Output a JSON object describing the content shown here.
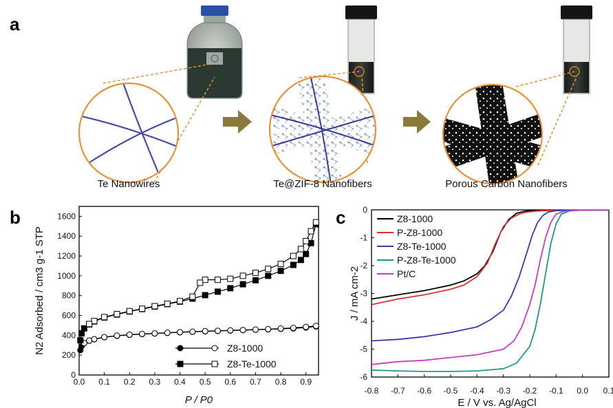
{
  "panels": {
    "a": {
      "letter": "a",
      "labels": [
        "Te Nanowires",
        "Te@ZIF-8 Nanofibers",
        "Porous Carbon Nanofibers"
      ]
    },
    "b": {
      "letter": "b"
    },
    "c": {
      "letter": "c"
    }
  },
  "colors": {
    "arrow": "#8a7a3a",
    "circle": "#e8913a",
    "wire": "#4a4aa8"
  },
  "chart_data": [
    {
      "panel": "b",
      "type": "line",
      "xlabel": "P / P0",
      "ylabel": "N2 Adsorbed / cm3 g-1 STP",
      "xlim": [
        0,
        0.95
      ],
      "ylim": [
        0,
        1700
      ],
      "xticks": [
        "0.0",
        "0.1",
        "0.2",
        "0.3",
        "0.4",
        "0.5",
        "0.6",
        "0.7",
        "0.8",
        "0.9"
      ],
      "yticks": [
        "0",
        "200",
        "400",
        "600",
        "800",
        "1000",
        "1200",
        "1400",
        "1600"
      ],
      "legend_position": "bottom-right",
      "series": [
        {
          "name": "Z8-1000",
          "branch": "adsorption",
          "marker": "filled-circle",
          "x": [
            0.005,
            0.01,
            0.02,
            0.04,
            0.06,
            0.1,
            0.15,
            0.2,
            0.25,
            0.3,
            0.35,
            0.4,
            0.45,
            0.5,
            0.55,
            0.6,
            0.65,
            0.7,
            0.75,
            0.8,
            0.85,
            0.9,
            0.94
          ],
          "y": [
            250,
            290,
            320,
            345,
            360,
            380,
            395,
            405,
            412,
            418,
            424,
            430,
            435,
            440,
            444,
            448,
            452,
            456,
            460,
            465,
            470,
            478,
            490
          ]
        },
        {
          "name": "Z8-1000",
          "branch": "desorption",
          "marker": "open-circle",
          "x": [
            0.94,
            0.9,
            0.85,
            0.8,
            0.75,
            0.7,
            0.65,
            0.6,
            0.55,
            0.5,
            0.45,
            0.4,
            0.35,
            0.3,
            0.25,
            0.2,
            0.15,
            0.1,
            0.06,
            0.04,
            0.02
          ],
          "y": [
            495,
            485,
            475,
            468,
            462,
            458,
            454,
            450,
            446,
            442,
            437,
            432,
            426,
            420,
            414,
            407,
            397,
            382,
            362,
            347,
            322
          ]
        },
        {
          "name": "Z8-Te-1000",
          "branch": "adsorption",
          "marker": "filled-square",
          "x": [
            0.005,
            0.01,
            0.02,
            0.04,
            0.06,
            0.1,
            0.15,
            0.2,
            0.25,
            0.3,
            0.35,
            0.4,
            0.45,
            0.5,
            0.55,
            0.6,
            0.65,
            0.7,
            0.75,
            0.8,
            0.85,
            0.88,
            0.9,
            0.92,
            0.94
          ],
          "y": [
            350,
            420,
            470,
            510,
            540,
            580,
            610,
            640,
            665,
            690,
            715,
            740,
            770,
            805,
            840,
            875,
            915,
            955,
            1000,
            1050,
            1110,
            1160,
            1220,
            1330,
            1520
          ]
        },
        {
          "name": "Z8-Te-1000",
          "branch": "desorption",
          "marker": "open-square",
          "x": [
            0.94,
            0.92,
            0.9,
            0.88,
            0.85,
            0.8,
            0.75,
            0.7,
            0.65,
            0.6,
            0.55,
            0.5,
            0.48,
            0.45,
            0.4,
            0.35,
            0.3,
            0.25,
            0.2,
            0.15,
            0.1,
            0.06,
            0.04
          ],
          "y": [
            1540,
            1450,
            1350,
            1270,
            1200,
            1120,
            1070,
            1030,
            1000,
            970,
            960,
            960,
            930,
            790,
            745,
            718,
            694,
            668,
            644,
            614,
            584,
            544,
            514
          ]
        }
      ]
    },
    {
      "panel": "c",
      "type": "line",
      "xlabel": "E / V vs. Ag/AgCl",
      "ylabel": "J / mA cm-2",
      "xlim": [
        -0.8,
        0.1
      ],
      "ylim": [
        -6,
        0
      ],
      "xticks": [
        "-0.8",
        "-0.7",
        "-0.6",
        "-0.5",
        "-0.4",
        "-0.3",
        "-0.2",
        "-0.1",
        "0.0",
        "0.1"
      ],
      "yticks": [
        "0",
        "-1",
        "-2",
        "-3",
        "-4",
        "-5",
        "-6"
      ],
      "legend_position": "top-left",
      "series": [
        {
          "name": "Z8-1000",
          "color": "#000000",
          "x": [
            -0.8,
            -0.7,
            -0.6,
            -0.5,
            -0.45,
            -0.4,
            -0.37,
            -0.34,
            -0.31,
            -0.28,
            -0.25,
            -0.22,
            -0.2,
            -0.15,
            -0.1,
            0.0,
            0.1
          ],
          "y": [
            -3.2,
            -3.05,
            -2.9,
            -2.7,
            -2.55,
            -2.3,
            -2.0,
            -1.5,
            -0.8,
            -0.35,
            -0.12,
            -0.05,
            -0.03,
            -0.02,
            -0.01,
            -0.01,
            -0.01
          ]
        },
        {
          "name": "P-Z8-1000",
          "color": "#e03030",
          "x": [
            -0.8,
            -0.7,
            -0.6,
            -0.5,
            -0.45,
            -0.4,
            -0.36,
            -0.33,
            -0.3,
            -0.27,
            -0.24,
            -0.21,
            -0.18,
            -0.15,
            -0.1,
            0.0,
            0.1
          ],
          "y": [
            -3.4,
            -3.2,
            -3.05,
            -2.85,
            -2.7,
            -2.4,
            -1.9,
            -1.2,
            -0.6,
            -0.3,
            -0.15,
            -0.08,
            -0.05,
            -0.03,
            -0.02,
            -0.01,
            -0.01
          ]
        },
        {
          "name": "Z8-Te-1000",
          "color": "#3a3ab0",
          "x": [
            -0.8,
            -0.7,
            -0.6,
            -0.5,
            -0.4,
            -0.35,
            -0.3,
            -0.27,
            -0.24,
            -0.21,
            -0.19,
            -0.17,
            -0.15,
            -0.13,
            -0.1,
            -0.05,
            0.0,
            0.1
          ],
          "y": [
            -4.7,
            -4.65,
            -4.55,
            -4.4,
            -4.2,
            -3.95,
            -3.6,
            -3.1,
            -2.4,
            -1.5,
            -0.9,
            -0.45,
            -0.2,
            -0.08,
            -0.03,
            -0.01,
            -0.01,
            -0.01
          ]
        },
        {
          "name": "P-Z8-Te-1000",
          "color": "#1a9a88",
          "x": [
            -0.8,
            -0.7,
            -0.6,
            -0.5,
            -0.4,
            -0.3,
            -0.25,
            -0.2,
            -0.18,
            -0.16,
            -0.14,
            -0.12,
            -0.1,
            -0.08,
            -0.05,
            0.0,
            0.1
          ],
          "y": [
            -5.75,
            -5.78,
            -5.8,
            -5.8,
            -5.78,
            -5.7,
            -5.5,
            -4.9,
            -4.3,
            -3.4,
            -2.3,
            -1.2,
            -0.5,
            -0.15,
            -0.04,
            -0.01,
            -0.01
          ]
        },
        {
          "name": "Pt/C",
          "color": "#c040c0",
          "x": [
            -0.8,
            -0.7,
            -0.6,
            -0.5,
            -0.4,
            -0.3,
            -0.26,
            -0.23,
            -0.2,
            -0.18,
            -0.16,
            -0.14,
            -0.12,
            -0.1,
            -0.07,
            -0.03,
            0.0,
            0.1
          ],
          "y": [
            -5.55,
            -5.45,
            -5.4,
            -5.3,
            -5.2,
            -5.0,
            -4.7,
            -4.2,
            -3.4,
            -2.7,
            -1.8,
            -1.0,
            -0.45,
            -0.15,
            -0.05,
            -0.02,
            -0.01,
            -0.01
          ]
        }
      ]
    }
  ]
}
